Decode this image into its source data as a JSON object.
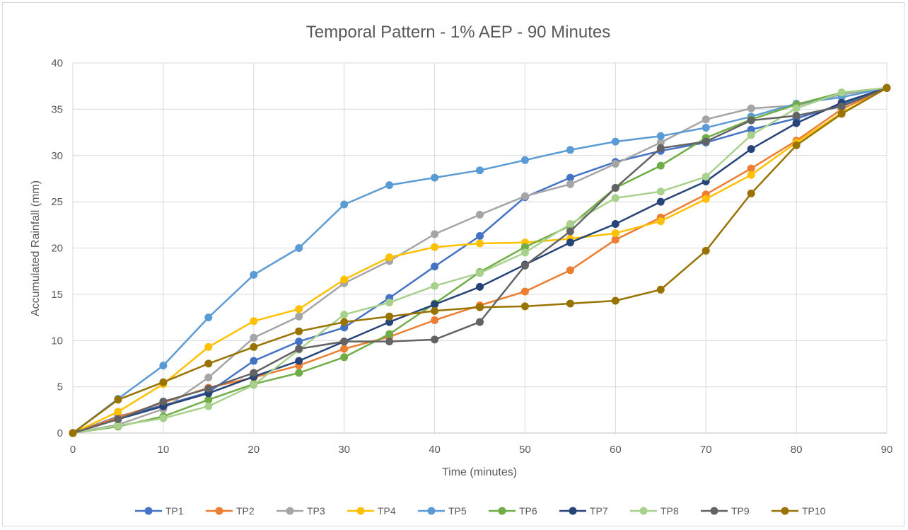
{
  "chart_data": {
    "type": "line",
    "title": "Temporal Pattern - 1% AEP - 90 Minutes",
    "xlabel": "Time (minutes)",
    "ylabel": "Accumulated Rainfall  (mm)",
    "xlim": [
      0,
      90
    ],
    "ylim": [
      0,
      40
    ],
    "x_ticks": [
      0,
      10,
      20,
      30,
      40,
      50,
      60,
      70,
      80,
      90
    ],
    "y_ticks": [
      0,
      5,
      10,
      15,
      20,
      25,
      30,
      35,
      40
    ],
    "grid": true,
    "legend_position": "bottom",
    "x": [
      0,
      5,
      10,
      15,
      20,
      25,
      30,
      35,
      40,
      45,
      50,
      55,
      60,
      65,
      70,
      75,
      80,
      85,
      90
    ],
    "series": [
      {
        "name": "TP1",
        "color": "#4472c4",
        "values": [
          0,
          1.8,
          3.0,
          4.4,
          7.8,
          9.9,
          11.4,
          14.6,
          18.0,
          21.3,
          25.5,
          27.6,
          29.3,
          30.5,
          31.4,
          32.8,
          34.0,
          35.5,
          37.3
        ]
      },
      {
        "name": "TP2",
        "color": "#ed7d31",
        "values": [
          0,
          1.7,
          3.3,
          4.9,
          6.0,
          7.3,
          9.1,
          10.4,
          12.2,
          13.8,
          15.3,
          17.6,
          20.9,
          23.3,
          25.8,
          28.6,
          31.6,
          35.0,
          37.3
        ]
      },
      {
        "name": "TP3",
        "color": "#a5a5a5",
        "values": [
          0,
          0.9,
          2.6,
          6.0,
          10.3,
          12.6,
          16.2,
          18.6,
          21.5,
          23.6,
          25.6,
          26.9,
          29.1,
          31.4,
          33.9,
          35.1,
          35.4,
          36.6,
          37.3
        ]
      },
      {
        "name": "TP4",
        "color": "#ffc000",
        "values": [
          0,
          2.3,
          5.3,
          9.3,
          12.1,
          13.4,
          16.6,
          19.0,
          20.1,
          20.5,
          20.6,
          21.0,
          21.6,
          22.9,
          25.3,
          27.9,
          31.4,
          34.6,
          37.3
        ]
      },
      {
        "name": "TP5",
        "color": "#5b9bd5",
        "values": [
          0,
          3.7,
          7.3,
          12.5,
          17.1,
          20.0,
          24.7,
          26.8,
          27.6,
          28.4,
          29.5,
          30.6,
          31.5,
          32.1,
          33.0,
          34.2,
          35.6,
          36.3,
          37.3
        ]
      },
      {
        "name": "TP6",
        "color": "#70ad47",
        "values": [
          0,
          0.7,
          1.8,
          3.6,
          5.3,
          6.5,
          8.2,
          10.7,
          14.0,
          17.4,
          20.1,
          22.4,
          26.5,
          28.9,
          31.9,
          33.9,
          35.5,
          36.8,
          37.3
        ]
      },
      {
        "name": "TP7",
        "color": "#264478",
        "values": [
          0,
          1.5,
          2.9,
          4.3,
          6.1,
          7.8,
          9.9,
          12.0,
          13.9,
          15.8,
          18.2,
          20.6,
          22.6,
          25.0,
          27.2,
          30.7,
          33.5,
          35.7,
          37.3
        ]
      },
      {
        "name": "TP8",
        "color": "#a9d18e",
        "values": [
          0,
          0.8,
          1.6,
          2.9,
          5.2,
          9.0,
          12.8,
          14.1,
          15.9,
          17.3,
          19.5,
          22.6,
          25.4,
          26.1,
          27.7,
          32.2,
          35.1,
          36.8,
          37.3
        ]
      },
      {
        "name": "TP9",
        "color": "#636363",
        "values": [
          0,
          1.5,
          3.4,
          4.8,
          6.5,
          9.1,
          9.9,
          9.9,
          10.1,
          12.0,
          18.1,
          21.8,
          26.5,
          30.8,
          31.5,
          33.8,
          34.3,
          35.3,
          37.3
        ]
      },
      {
        "name": "TP10",
        "color": "#997300",
        "values": [
          0,
          3.6,
          5.5,
          7.5,
          9.3,
          11.0,
          12.0,
          12.6,
          13.2,
          13.6,
          13.7,
          14.0,
          14.3,
          15.5,
          19.7,
          25.9,
          31.1,
          34.5,
          37.3
        ]
      }
    ]
  }
}
